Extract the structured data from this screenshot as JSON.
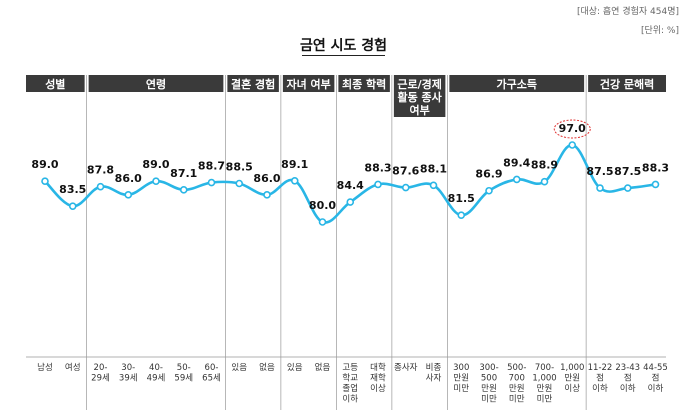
{
  "header": {
    "note_sample": "[대상: 흡연 경험자 454명]",
    "note_unit": "[단위: %]"
  },
  "colors": {
    "line": "#29B6E6",
    "group_bg": "#3a3a3a",
    "divider": "#999999",
    "highlight": "#e03030"
  },
  "chart_data": {
    "type": "line",
    "title": "금연 시도 경험",
    "unit": "%",
    "ylim": [
      0,
      100
    ],
    "groups": [
      {
        "label": "성별",
        "label_lines": [
          "성별"
        ]
      },
      {
        "label": "연령",
        "label_lines": [
          "연령"
        ]
      },
      {
        "label": "결혼 경험",
        "label_lines": [
          "결혼 경험"
        ]
      },
      {
        "label": "자녀 여부",
        "label_lines": [
          "자녀 여부"
        ]
      },
      {
        "label": "최종 학력",
        "label_lines": [
          "최종 학력"
        ]
      },
      {
        "label": "근로/경제 활동 종사 여부",
        "label_lines": [
          "근로/경제",
          "활동 종사",
          "여부"
        ]
      },
      {
        "label": "가구소득",
        "label_lines": [
          "가구소득"
        ]
      },
      {
        "label": "건강 문해력",
        "label_lines": [
          "건강 문해력"
        ]
      }
    ],
    "categories": [
      {
        "group": 0,
        "label": "남성",
        "lines": [
          "남성"
        ],
        "value": 89.0
      },
      {
        "group": 0,
        "label": "여성",
        "lines": [
          "여성"
        ],
        "value": 83.5
      },
      {
        "group": 1,
        "label": "20-29세",
        "lines": [
          "20-",
          "29세"
        ],
        "value": 87.8
      },
      {
        "group": 1,
        "label": "30-39세",
        "lines": [
          "30-",
          "39세"
        ],
        "value": 86.0
      },
      {
        "group": 1,
        "label": "40-49세",
        "lines": [
          "40-",
          "49세"
        ],
        "value": 89.0
      },
      {
        "group": 1,
        "label": "50-59세",
        "lines": [
          "50-",
          "59세"
        ],
        "value": 87.1
      },
      {
        "group": 1,
        "label": "60-65세",
        "lines": [
          "60-",
          "65세"
        ],
        "value": 88.7
      },
      {
        "group": 2,
        "label": "있음",
        "lines": [
          "있음"
        ],
        "value": 88.5
      },
      {
        "group": 2,
        "label": "없음",
        "lines": [
          "없음"
        ],
        "value": 86.0
      },
      {
        "group": 3,
        "label": "있음",
        "lines": [
          "있음"
        ],
        "value": 89.1
      },
      {
        "group": 3,
        "label": "없음",
        "lines": [
          "없음"
        ],
        "value": 80.0
      },
      {
        "group": 4,
        "label": "고등학교 졸업 이하",
        "lines": [
          "고등",
          "학교",
          "졸업",
          "이하"
        ],
        "value": 84.4
      },
      {
        "group": 4,
        "label": "대학 재학 이상",
        "lines": [
          "대학",
          "재학",
          "이상"
        ],
        "value": 88.3
      },
      {
        "group": 5,
        "label": "종사자",
        "lines": [
          "종사자"
        ],
        "value": 87.6
      },
      {
        "group": 5,
        "label": "비종사자",
        "lines": [
          "비종",
          "사자"
        ],
        "value": 88.1
      },
      {
        "group": 6,
        "label": "300만원 미만",
        "lines": [
          "300",
          "만원",
          "미만"
        ],
        "value": 81.5
      },
      {
        "group": 6,
        "label": "300-500만원 미만",
        "lines": [
          "300-",
          "500",
          "만원",
          "미만"
        ],
        "value": 86.9
      },
      {
        "group": 6,
        "label": "500-700만원 미만",
        "lines": [
          "500-",
          "700",
          "만원",
          "미만"
        ],
        "value": 89.4
      },
      {
        "group": 6,
        "label": "700-1,000만원 미만",
        "lines": [
          "700-",
          "1,000",
          "만원",
          "미만"
        ],
        "value": 88.9
      },
      {
        "group": 6,
        "label": "1,000만원 이상",
        "lines": [
          "1,000",
          "만원",
          "이상"
        ],
        "value": 97.0,
        "highlight": true
      },
      {
        "group": 7,
        "label": "11-22점 이하",
        "lines": [
          "11-22",
          "점",
          "이하"
        ],
        "value": 87.5
      },
      {
        "group": 7,
        "label": "23-43점 이하",
        "lines": [
          "23-43",
          "점",
          "이하"
        ],
        "value": 87.5
      },
      {
        "group": 7,
        "label": "44-55점 이하",
        "lines": [
          "44-55",
          "점",
          "이하"
        ],
        "value": 88.3
      }
    ]
  }
}
